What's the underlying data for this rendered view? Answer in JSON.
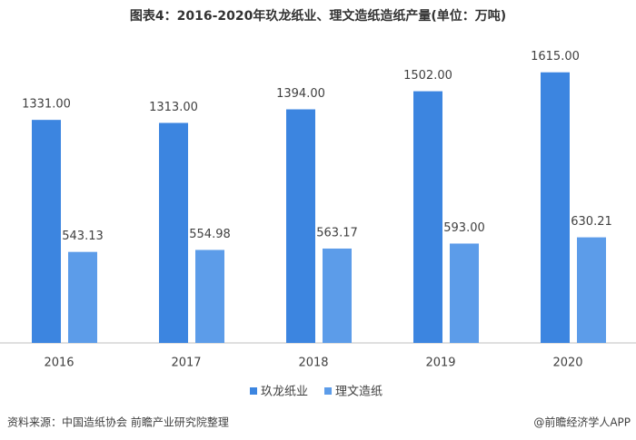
{
  "chart_data": {
    "type": "bar",
    "title": "图表4：2016-2020年玖龙纸业、理文造纸造纸产量(单位：万吨)",
    "categories": [
      "2016",
      "2017",
      "2018",
      "2019",
      "2020"
    ],
    "series": [
      {
        "name": "玖龙纸业",
        "color": "#3c85e0",
        "values": [
          1331,
          1313,
          1394,
          1502,
          1615
        ],
        "value_labels": [
          "1331.00",
          "1313.00",
          "1394.00",
          "1502.00",
          "1615.00"
        ]
      },
      {
        "name": "理文造纸",
        "color": "#5c9ce9",
        "values": [
          543.13,
          554.98,
          563.17,
          593,
          630.21
        ],
        "value_labels": [
          "543.13",
          "554.98",
          "563.17",
          "593.00",
          "630.21"
        ]
      }
    ],
    "ylim": [
      0,
      1700
    ],
    "source": "资料来源：中国造纸协会 前瞻产业研究院整理",
    "credit": "@前瞻经济学人APP"
  }
}
